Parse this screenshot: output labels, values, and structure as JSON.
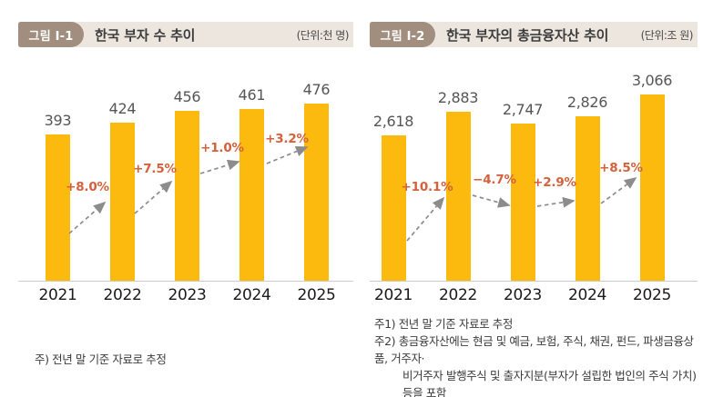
{
  "colors": {
    "bar": "#fbba0d",
    "change_label": "#d4613c",
    "arrow": "#8c8c8c",
    "strip_bg": "#ece6df",
    "badge_bg": "#a18e7e",
    "axis_line": "#cccccc"
  },
  "chart_data": [
    {
      "type": "bar",
      "badge": "그림 I-1",
      "title": "한국 부자 수 추이",
      "unit_label": "(단위:천 명)",
      "categories": [
        "2021",
        "2022",
        "2023",
        "2024",
        "2025"
      ],
      "values": [
        393,
        424,
        456,
        461,
        476
      ],
      "value_labels": [
        "393",
        "424",
        "456",
        "461",
        "476"
      ],
      "change_labels": [
        "+8.0%",
        "+7.5%",
        "+1.0%",
        "+3.2%"
      ],
      "footnotes": [
        "주) 전년 말 기준 자료로 추정"
      ],
      "xlabel": "",
      "ylabel": "",
      "ylim": [
        0,
        500
      ],
      "grid": false,
      "legend": false
    },
    {
      "type": "bar",
      "badge": "그림 I-2",
      "title": "한국 부자의 총금융자산 추이",
      "unit_label": "(단위:조 원)",
      "categories": [
        "2021",
        "2022",
        "2023",
        "2024",
        "2025"
      ],
      "values": [
        2618,
        2883,
        2747,
        2826,
        3066
      ],
      "value_labels": [
        "2,618",
        "2,883",
        "2,747",
        "2,826",
        "3,066"
      ],
      "change_labels": [
        "+10.1%",
        "−4.7%",
        "+2.9%",
        "+8.5%"
      ],
      "footnotes": [
        "주1) 전년 말 기준 자료로 추정",
        "주2) 총금융자산에는 현금 및 예금, 보험, 주식, 채권, 펀드, 파생금융상품, 거주자·",
        "비거주자 발행주식 및 출자지분(부자가 설립한 법인의 주식 가치) 등을 포함"
      ],
      "xlabel": "",
      "ylabel": "",
      "ylim": [
        1000,
        3200
      ],
      "grid": false,
      "legend": false
    }
  ]
}
